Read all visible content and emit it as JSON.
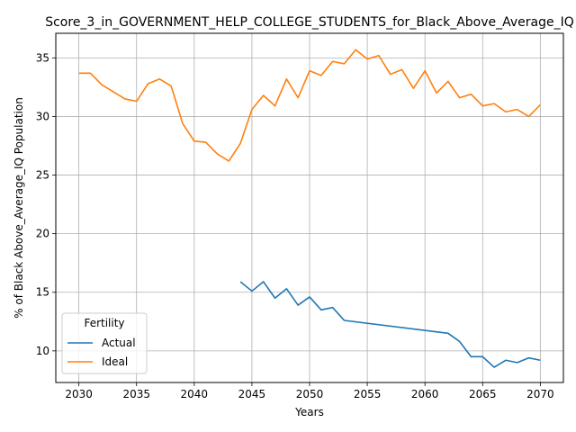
{
  "chart_data": {
    "type": "line",
    "title": "Score_3_in_GOVERNMENT_HELP_COLLEGE_STUDENTS_for_Black_Above_Average_IQ",
    "xlabel": "Years",
    "ylabel": "% of Black Above_Average_IQ Population",
    "xlim": [
      2028,
      2072
    ],
    "ylim": [
      7.3,
      37.1
    ],
    "xticks": [
      2030,
      2035,
      2040,
      2045,
      2050,
      2055,
      2060,
      2065,
      2070
    ],
    "yticks": [
      10,
      15,
      20,
      25,
      30,
      35
    ],
    "grid": true,
    "legend": {
      "title": "Fertility",
      "location": "lower-left"
    },
    "series": [
      {
        "name": "Actual",
        "color": "#1f77b4",
        "x": [
          2044,
          2045,
          2046,
          2047,
          2048,
          2049,
          2050,
          2051,
          2052,
          2053,
          2062,
          2063,
          2064,
          2065,
          2066,
          2067,
          2068,
          2069,
          2070
        ],
        "y": [
          15.9,
          15.1,
          15.9,
          14.5,
          15.3,
          13.9,
          14.6,
          13.5,
          13.7,
          12.6,
          11.5,
          10.8,
          9.5,
          9.5,
          8.6,
          9.2,
          9.0,
          9.4,
          9.2
        ]
      },
      {
        "name": "Ideal",
        "color": "#ff7f0e",
        "x": [
          2030,
          2031,
          2032,
          2033,
          2034,
          2035,
          2036,
          2037,
          2038,
          2039,
          2040,
          2041,
          2042,
          2043,
          2044,
          2045,
          2046,
          2047,
          2048,
          2049,
          2050,
          2051,
          2052,
          2053,
          2054,
          2055,
          2056,
          2057,
          2058,
          2059,
          2060,
          2061,
          2062,
          2063,
          2064,
          2065,
          2066,
          2067,
          2068,
          2069,
          2070
        ],
        "y": [
          33.7,
          33.7,
          32.7,
          32.1,
          31.5,
          31.3,
          32.8,
          33.2,
          32.6,
          29.4,
          27.9,
          27.8,
          26.8,
          26.2,
          27.7,
          30.6,
          31.8,
          30.9,
          33.2,
          31.6,
          33.9,
          33.5,
          34.7,
          34.5,
          35.7,
          34.9,
          35.2,
          33.6,
          34.0,
          32.4,
          33.9,
          32.0,
          33.0,
          31.6,
          31.9,
          30.9,
          31.1,
          30.4,
          30.6,
          30.0,
          31.0
        ]
      }
    ]
  }
}
